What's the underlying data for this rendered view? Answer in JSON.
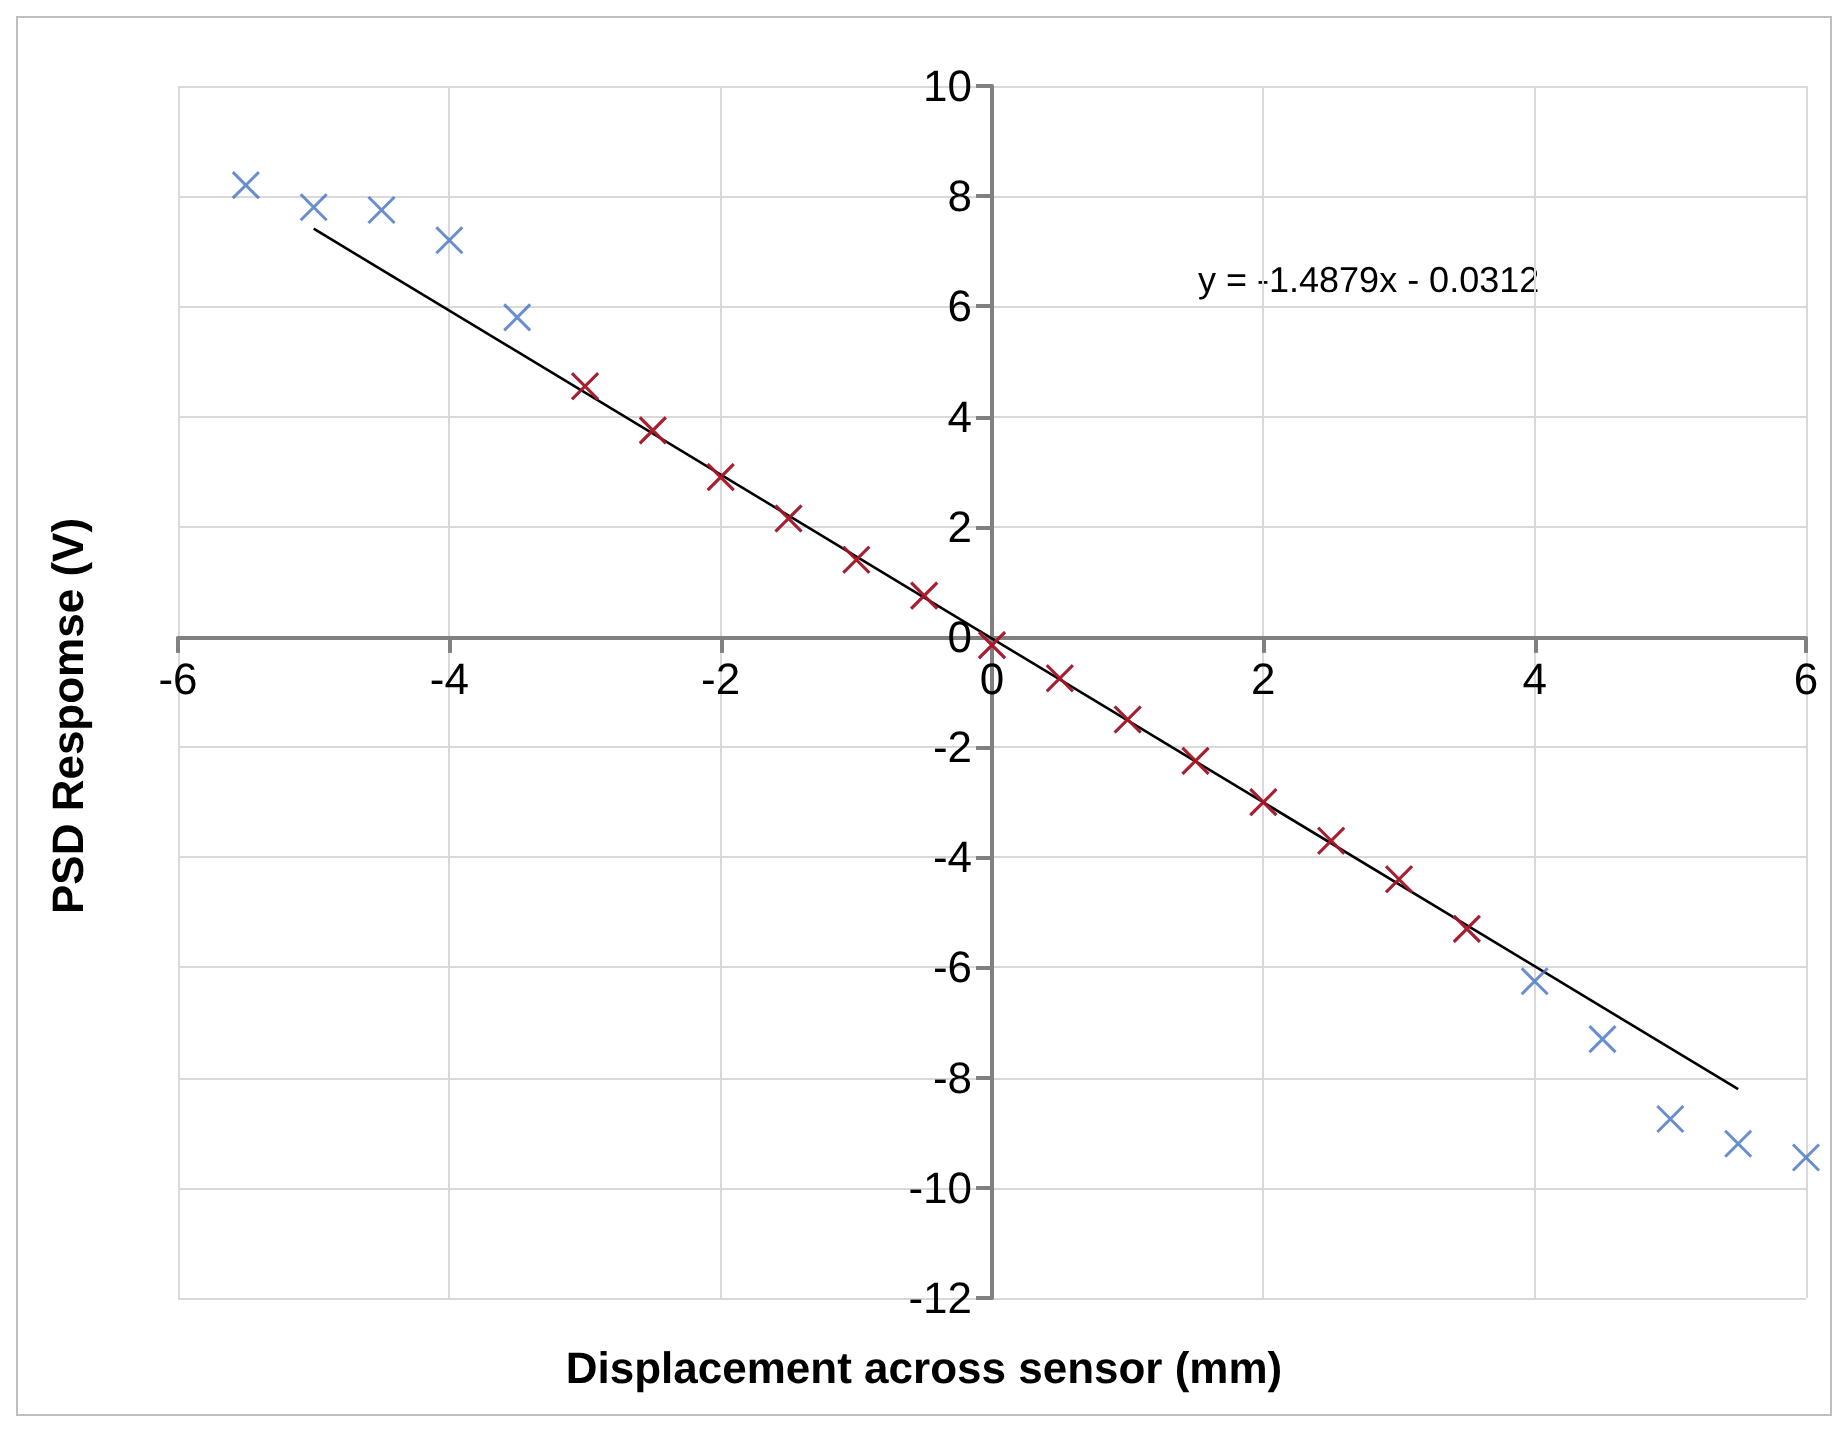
{
  "chart_data": {
    "type": "scatter",
    "xlabel": "Displacement across sensor (mm)",
    "ylabel": "PSD Respomse (V)",
    "xlim": [
      -6,
      6
    ],
    "xticks": [
      -6,
      -4,
      -2,
      0,
      2,
      4,
      6
    ],
    "ylim": [
      -12,
      10
    ],
    "yticks": [
      -12,
      -10,
      -8,
      -6,
      -4,
      -2,
      0,
      2,
      4,
      6,
      8,
      10
    ],
    "grid": true,
    "marker": "cross",
    "annotations": [
      "y = -1.4879x - 0.0312"
    ],
    "series": [
      {
        "color": "#4472c4",
        "x": [
          -5.5,
          -5,
          -4.5,
          -4,
          -3.5,
          -3,
          -2.5,
          -2,
          -1.5,
          -1,
          -0.5,
          0,
          0.5,
          1,
          1.5,
          2,
          2.5,
          3,
          3.5,
          4,
          4.5,
          5,
          5.5,
          6
        ],
        "values": [
          8.2,
          7.8,
          7.75,
          7.2,
          5.8,
          4.55,
          3.75,
          2.9,
          2.15,
          1.4,
          0.75,
          -0.15,
          -0.75,
          -1.5,
          -2.25,
          -3.0,
          -3.7,
          -4.4,
          -5.3,
          -6.25,
          -7.3,
          -8.75,
          -9.2,
          -9.45
        ]
      },
      {
        "color": "#c00000",
        "x": [
          -3,
          -2.5,
          -2,
          -1.5,
          -1,
          -0.5,
          0,
          0.5,
          1,
          1.5,
          2,
          2.5,
          3,
          3.5
        ],
        "values": [
          4.55,
          3.75,
          2.9,
          2.15,
          1.4,
          0.75,
          -0.15,
          -0.75,
          -1.5,
          -2.25,
          -3.0,
          -3.7,
          -4.4,
          -5.3
        ]
      },
      {
        "type": "line",
        "color": "#000000",
        "marker": "none",
        "x": [
          -5,
          5.5
        ],
        "values": [
          7.41,
          -8.21
        ]
      }
    ]
  }
}
